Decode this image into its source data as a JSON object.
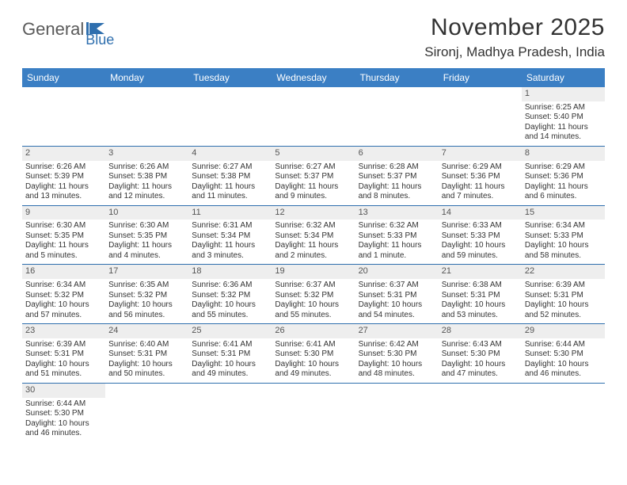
{
  "logo": {
    "text_general": "General",
    "text_blue": "Blue"
  },
  "title": "November 2025",
  "location": "Sironj, Madhya Pradesh, India",
  "colors": {
    "header_bg": "#3b7fc4",
    "header_text": "#ffffff",
    "border": "#2f6fae",
    "daynum_bg": "#eeeeee",
    "text": "#333333"
  },
  "day_headers": [
    "Sunday",
    "Monday",
    "Tuesday",
    "Wednesday",
    "Thursday",
    "Friday",
    "Saturday"
  ],
  "weeks": [
    [
      {
        "empty": true
      },
      {
        "empty": true
      },
      {
        "empty": true
      },
      {
        "empty": true
      },
      {
        "empty": true
      },
      {
        "empty": true
      },
      {
        "day": "1",
        "sunrise": "Sunrise: 6:25 AM",
        "sunset": "Sunset: 5:40 PM",
        "daylight": "Daylight: 11 hours and 14 minutes."
      }
    ],
    [
      {
        "day": "2",
        "sunrise": "Sunrise: 6:26 AM",
        "sunset": "Sunset: 5:39 PM",
        "daylight": "Daylight: 11 hours and 13 minutes."
      },
      {
        "day": "3",
        "sunrise": "Sunrise: 6:26 AM",
        "sunset": "Sunset: 5:38 PM",
        "daylight": "Daylight: 11 hours and 12 minutes."
      },
      {
        "day": "4",
        "sunrise": "Sunrise: 6:27 AM",
        "sunset": "Sunset: 5:38 PM",
        "daylight": "Daylight: 11 hours and 11 minutes."
      },
      {
        "day": "5",
        "sunrise": "Sunrise: 6:27 AM",
        "sunset": "Sunset: 5:37 PM",
        "daylight": "Daylight: 11 hours and 9 minutes."
      },
      {
        "day": "6",
        "sunrise": "Sunrise: 6:28 AM",
        "sunset": "Sunset: 5:37 PM",
        "daylight": "Daylight: 11 hours and 8 minutes."
      },
      {
        "day": "7",
        "sunrise": "Sunrise: 6:29 AM",
        "sunset": "Sunset: 5:36 PM",
        "daylight": "Daylight: 11 hours and 7 minutes."
      },
      {
        "day": "8",
        "sunrise": "Sunrise: 6:29 AM",
        "sunset": "Sunset: 5:36 PM",
        "daylight": "Daylight: 11 hours and 6 minutes."
      }
    ],
    [
      {
        "day": "9",
        "sunrise": "Sunrise: 6:30 AM",
        "sunset": "Sunset: 5:35 PM",
        "daylight": "Daylight: 11 hours and 5 minutes."
      },
      {
        "day": "10",
        "sunrise": "Sunrise: 6:30 AM",
        "sunset": "Sunset: 5:35 PM",
        "daylight": "Daylight: 11 hours and 4 minutes."
      },
      {
        "day": "11",
        "sunrise": "Sunrise: 6:31 AM",
        "sunset": "Sunset: 5:34 PM",
        "daylight": "Daylight: 11 hours and 3 minutes."
      },
      {
        "day": "12",
        "sunrise": "Sunrise: 6:32 AM",
        "sunset": "Sunset: 5:34 PM",
        "daylight": "Daylight: 11 hours and 2 minutes."
      },
      {
        "day": "13",
        "sunrise": "Sunrise: 6:32 AM",
        "sunset": "Sunset: 5:33 PM",
        "daylight": "Daylight: 11 hours and 1 minute."
      },
      {
        "day": "14",
        "sunrise": "Sunrise: 6:33 AM",
        "sunset": "Sunset: 5:33 PM",
        "daylight": "Daylight: 10 hours and 59 minutes."
      },
      {
        "day": "15",
        "sunrise": "Sunrise: 6:34 AM",
        "sunset": "Sunset: 5:33 PM",
        "daylight": "Daylight: 10 hours and 58 minutes."
      }
    ],
    [
      {
        "day": "16",
        "sunrise": "Sunrise: 6:34 AM",
        "sunset": "Sunset: 5:32 PM",
        "daylight": "Daylight: 10 hours and 57 minutes."
      },
      {
        "day": "17",
        "sunrise": "Sunrise: 6:35 AM",
        "sunset": "Sunset: 5:32 PM",
        "daylight": "Daylight: 10 hours and 56 minutes."
      },
      {
        "day": "18",
        "sunrise": "Sunrise: 6:36 AM",
        "sunset": "Sunset: 5:32 PM",
        "daylight": "Daylight: 10 hours and 55 minutes."
      },
      {
        "day": "19",
        "sunrise": "Sunrise: 6:37 AM",
        "sunset": "Sunset: 5:32 PM",
        "daylight": "Daylight: 10 hours and 55 minutes."
      },
      {
        "day": "20",
        "sunrise": "Sunrise: 6:37 AM",
        "sunset": "Sunset: 5:31 PM",
        "daylight": "Daylight: 10 hours and 54 minutes."
      },
      {
        "day": "21",
        "sunrise": "Sunrise: 6:38 AM",
        "sunset": "Sunset: 5:31 PM",
        "daylight": "Daylight: 10 hours and 53 minutes."
      },
      {
        "day": "22",
        "sunrise": "Sunrise: 6:39 AM",
        "sunset": "Sunset: 5:31 PM",
        "daylight": "Daylight: 10 hours and 52 minutes."
      }
    ],
    [
      {
        "day": "23",
        "sunrise": "Sunrise: 6:39 AM",
        "sunset": "Sunset: 5:31 PM",
        "daylight": "Daylight: 10 hours and 51 minutes."
      },
      {
        "day": "24",
        "sunrise": "Sunrise: 6:40 AM",
        "sunset": "Sunset: 5:31 PM",
        "daylight": "Daylight: 10 hours and 50 minutes."
      },
      {
        "day": "25",
        "sunrise": "Sunrise: 6:41 AM",
        "sunset": "Sunset: 5:31 PM",
        "daylight": "Daylight: 10 hours and 49 minutes."
      },
      {
        "day": "26",
        "sunrise": "Sunrise: 6:41 AM",
        "sunset": "Sunset: 5:30 PM",
        "daylight": "Daylight: 10 hours and 49 minutes."
      },
      {
        "day": "27",
        "sunrise": "Sunrise: 6:42 AM",
        "sunset": "Sunset: 5:30 PM",
        "daylight": "Daylight: 10 hours and 48 minutes."
      },
      {
        "day": "28",
        "sunrise": "Sunrise: 6:43 AM",
        "sunset": "Sunset: 5:30 PM",
        "daylight": "Daylight: 10 hours and 47 minutes."
      },
      {
        "day": "29",
        "sunrise": "Sunrise: 6:44 AM",
        "sunset": "Sunset: 5:30 PM",
        "daylight": "Daylight: 10 hours and 46 minutes."
      }
    ],
    [
      {
        "day": "30",
        "sunrise": "Sunrise: 6:44 AM",
        "sunset": "Sunset: 5:30 PM",
        "daylight": "Daylight: 10 hours and 46 minutes."
      },
      {
        "empty": true
      },
      {
        "empty": true
      },
      {
        "empty": true
      },
      {
        "empty": true
      },
      {
        "empty": true
      },
      {
        "empty": true
      }
    ]
  ]
}
